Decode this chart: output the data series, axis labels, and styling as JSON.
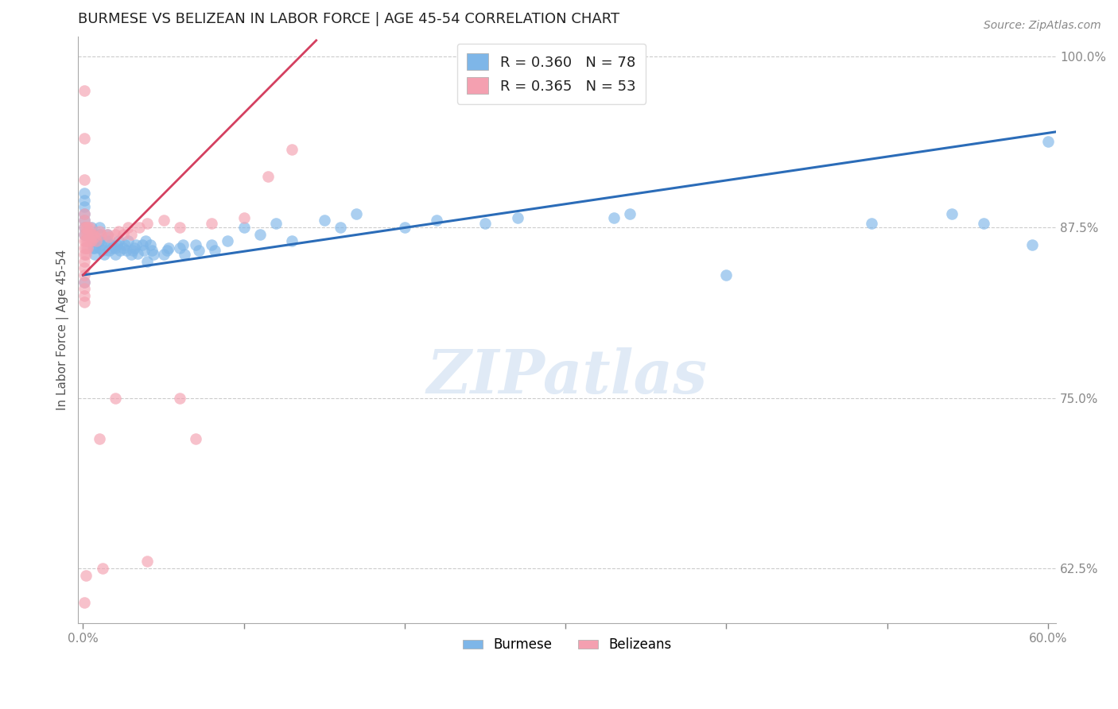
{
  "title": "BURMESE VS BELIZEAN IN LABOR FORCE | AGE 45-54 CORRELATION CHART",
  "source": "Source: ZipAtlas.com",
  "ylabel_label": "In Labor Force | Age 45-54",
  "xmin": -0.003,
  "xmax": 0.605,
  "ymin": 0.585,
  "ymax": 1.015,
  "y_ticks": [
    0.625,
    0.75,
    0.875,
    1.0
  ],
  "y_tick_labels": [
    "62.5%",
    "75.0%",
    "87.5%",
    "100.0%"
  ],
  "x_ticks": [
    0.0,
    0.1,
    0.2,
    0.3,
    0.4,
    0.5,
    0.6
  ],
  "x_tick_labels": [
    "0.0%",
    "",
    "",
    "",
    "",
    "",
    "60.0%"
  ],
  "burmese_R": 0.36,
  "burmese_N": 78,
  "belizean_R": 0.365,
  "belizean_N": 53,
  "burmese_color": "#7EB6E8",
  "belizean_color": "#F4A0B0",
  "burmese_line_color": "#2B6CB8",
  "belizean_line_color": "#D44060",
  "background_color": "#FFFFFF",
  "grid_color": "#CCCCCC",
  "blue_line_x": [
    0.0,
    0.605
  ],
  "blue_line_y": [
    0.84,
    0.945
  ],
  "pink_line_x": [
    0.0,
    0.145
  ],
  "pink_line_y": [
    0.84,
    1.012
  ],
  "burmese_x": [
    0.001,
    0.001,
    0.001,
    0.001,
    0.001,
    0.001,
    0.001,
    0.001,
    0.005,
    0.005,
    0.006,
    0.006,
    0.007,
    0.007,
    0.007,
    0.01,
    0.01,
    0.01,
    0.01,
    0.011,
    0.012,
    0.013,
    0.015,
    0.015,
    0.016,
    0.017,
    0.018,
    0.02,
    0.02,
    0.021,
    0.022,
    0.023,
    0.025,
    0.026,
    0.027,
    0.028,
    0.03,
    0.031,
    0.032,
    0.033,
    0.034,
    0.037,
    0.038,
    0.039,
    0.04,
    0.042,
    0.043,
    0.044,
    0.05,
    0.052,
    0.053,
    0.06,
    0.062,
    0.063,
    0.07,
    0.072,
    0.08,
    0.082,
    0.09,
    0.1,
    0.11,
    0.12,
    0.13,
    0.15,
    0.16,
    0.17,
    0.2,
    0.22,
    0.25,
    0.27,
    0.33,
    0.34,
    0.4,
    0.49,
    0.54,
    0.56,
    0.59,
    0.6
  ],
  "burmese_y": [
    0.87,
    0.875,
    0.88,
    0.885,
    0.89,
    0.895,
    0.9,
    0.835,
    0.87,
    0.875,
    0.86,
    0.865,
    0.855,
    0.86,
    0.865,
    0.86,
    0.865,
    0.87,
    0.875,
    0.862,
    0.858,
    0.855,
    0.865,
    0.87,
    0.858,
    0.862,
    0.86,
    0.855,
    0.86,
    0.862,
    0.865,
    0.858,
    0.86,
    0.862,
    0.858,
    0.865,
    0.855,
    0.858,
    0.86,
    0.862,
    0.856,
    0.862,
    0.858,
    0.865,
    0.85,
    0.862,
    0.858,
    0.855,
    0.855,
    0.858,
    0.86,
    0.86,
    0.862,
    0.855,
    0.862,
    0.858,
    0.862,
    0.858,
    0.865,
    0.875,
    0.87,
    0.878,
    0.865,
    0.88,
    0.875,
    0.885,
    0.875,
    0.88,
    0.878,
    0.882,
    0.882,
    0.885,
    0.84,
    0.878,
    0.885,
    0.878,
    0.862,
    0.938
  ],
  "belizean_x": [
    0.001,
    0.001,
    0.001,
    0.001,
    0.001,
    0.001,
    0.001,
    0.001,
    0.001,
    0.001,
    0.001,
    0.001,
    0.001,
    0.001,
    0.002,
    0.002,
    0.002,
    0.002,
    0.002,
    0.003,
    0.003,
    0.003,
    0.003,
    0.004,
    0.004,
    0.004,
    0.005,
    0.005,
    0.006,
    0.007,
    0.008,
    0.01,
    0.011,
    0.015,
    0.016,
    0.02,
    0.022,
    0.025,
    0.028,
    0.03,
    0.035,
    0.04,
    0.05,
    0.06,
    0.08,
    0.1,
    0.115,
    0.13,
    0.02,
    0.04,
    0.06,
    0.07
  ],
  "belizean_y": [
    0.875,
    0.88,
    0.885,
    0.87,
    0.865,
    0.86,
    0.855,
    0.85,
    0.845,
    0.84,
    0.835,
    0.83,
    0.825,
    0.82,
    0.875,
    0.87,
    0.865,
    0.86,
    0.855,
    0.875,
    0.87,
    0.865,
    0.86,
    0.875,
    0.87,
    0.865,
    0.87,
    0.865,
    0.87,
    0.868,
    0.865,
    0.872,
    0.87,
    0.87,
    0.868,
    0.87,
    0.872,
    0.87,
    0.875,
    0.87,
    0.875,
    0.878,
    0.88,
    0.875,
    0.878,
    0.882,
    0.912,
    0.932,
    0.75,
    0.63,
    0.75,
    0.72
  ],
  "belizean_outlier_x": [
    0.001,
    0.001,
    0.001,
    0.001,
    0.002,
    0.01,
    0.012
  ],
  "belizean_outlier_y": [
    0.975,
    0.94,
    0.91,
    0.6,
    0.62,
    0.72,
    0.625
  ],
  "title_fontsize": 13,
  "axis_label_fontsize": 11,
  "tick_fontsize": 11,
  "legend_fontsize": 13
}
